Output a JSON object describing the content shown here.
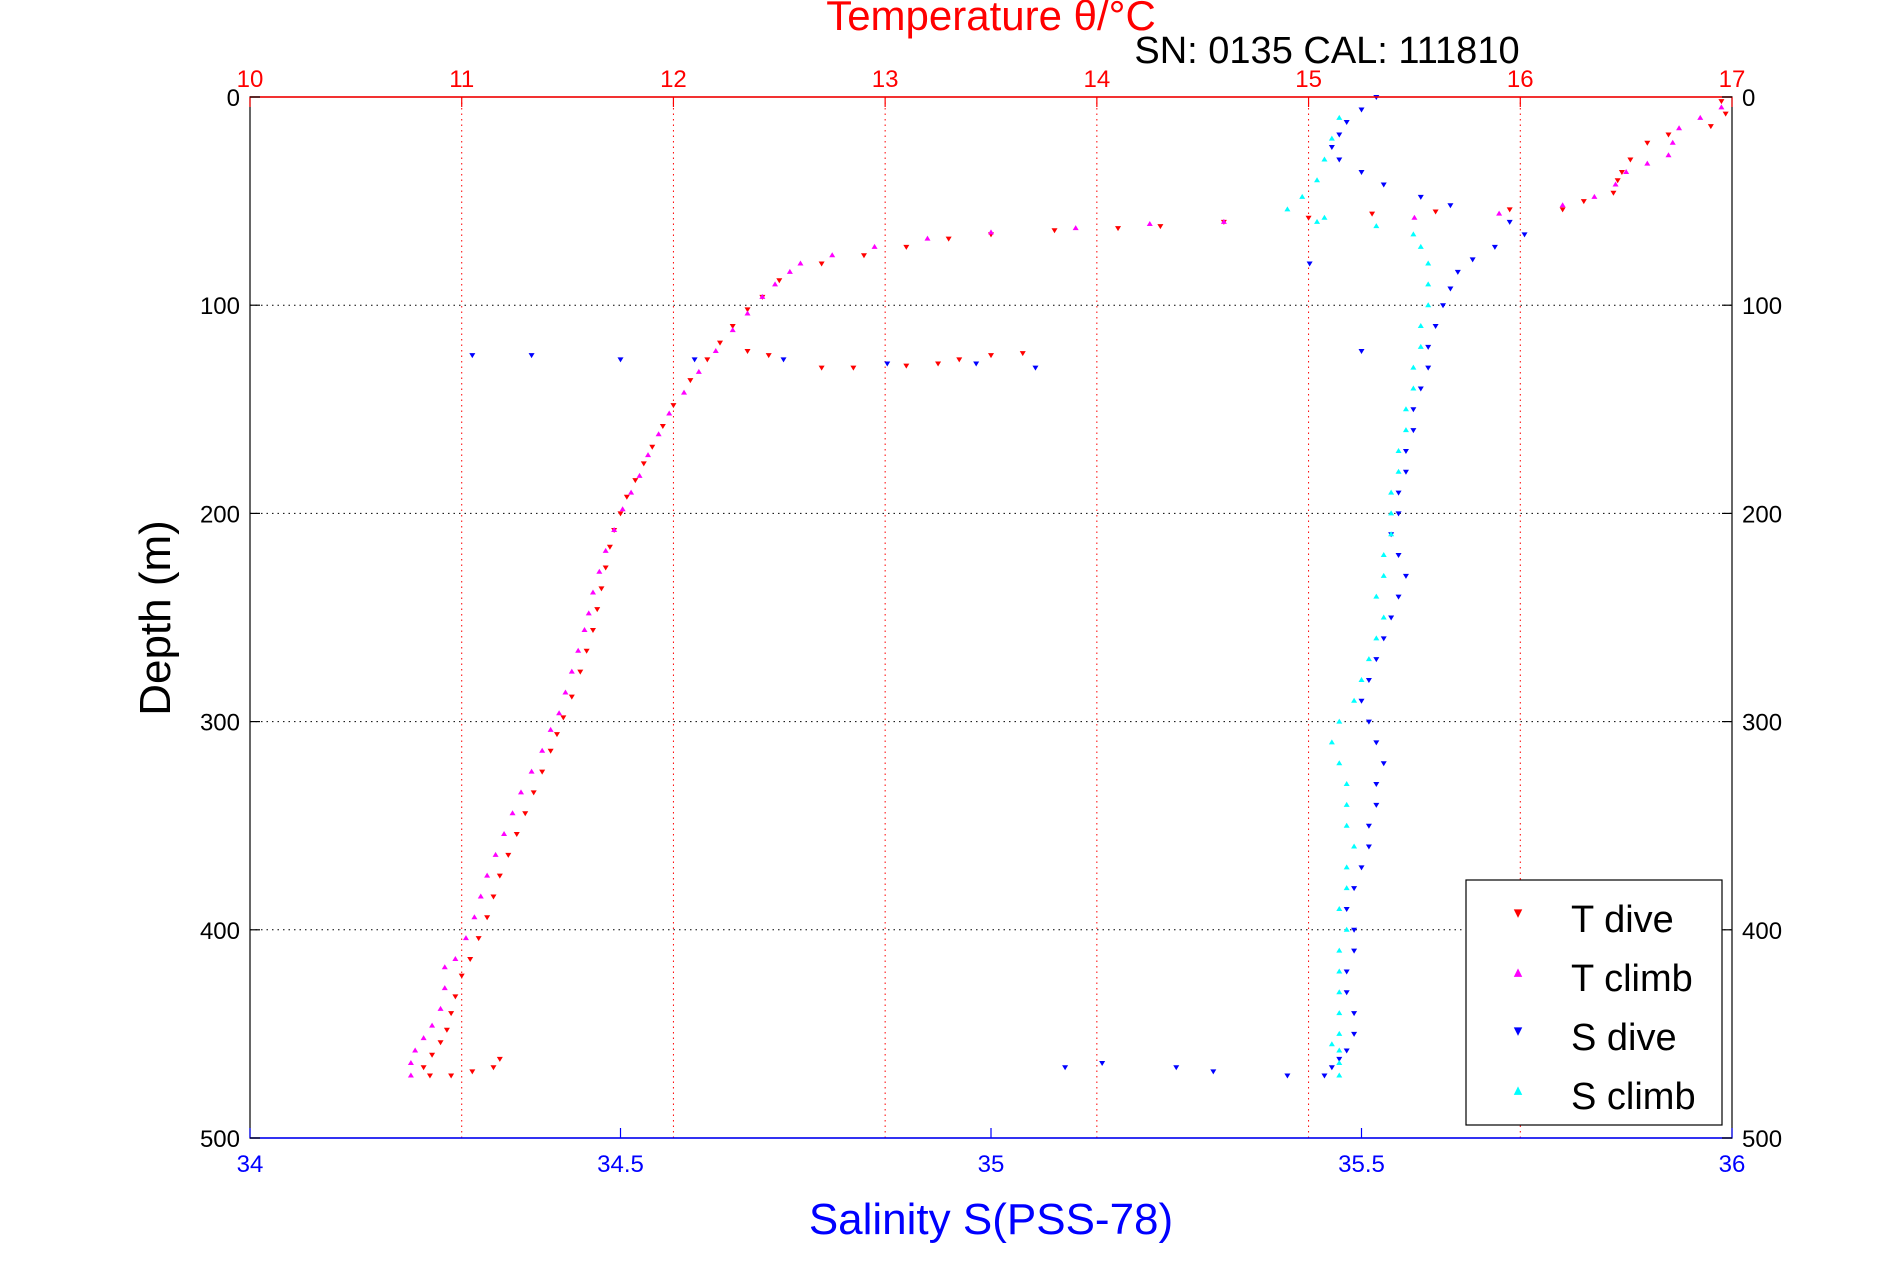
{
  "chart_data": {
    "type": "scatter",
    "title": "Temperature θ/°C",
    "annotation": "SN: 0135  CAL: 111810",
    "xlabel": "Salinity S(PSS-78)",
    "ylabel": "Depth (m)",
    "top_axis": {
      "label": "Temperature θ/°C",
      "range": [
        10,
        17
      ],
      "ticks": [
        10,
        11,
        12,
        13,
        14,
        15,
        16,
        17
      ],
      "color": "#ff0000"
    },
    "bottom_axis": {
      "label": "Salinity S(PSS-78)",
      "range": [
        34,
        36
      ],
      "ticks": [
        "34",
        "34.5",
        "35",
        "35.5",
        "36"
      ],
      "color": "#0000ff"
    },
    "y_axis": {
      "label": "Depth (m)",
      "range": [
        0,
        500
      ],
      "reversed": true,
      "ticks": [
        0,
        100,
        200,
        300,
        400,
        500
      ]
    },
    "grid": true,
    "legend": {
      "placement": "bottom-right",
      "entries": [
        "T dive",
        "T climb",
        "S dive",
        "S climb"
      ]
    },
    "series": [
      {
        "name": "T dive",
        "axis": "temperature",
        "color": "#ff0000",
        "marker": "triangle-down",
        "points": [
          [
            16.95,
            2
          ],
          [
            16.97,
            8
          ],
          [
            16.9,
            14
          ],
          [
            16.7,
            18
          ],
          [
            16.6,
            22
          ],
          [
            16.52,
            30
          ],
          [
            16.48,
            36
          ],
          [
            16.46,
            40
          ],
          [
            16.44,
            46
          ],
          [
            16.3,
            50
          ],
          [
            16.2,
            54
          ],
          [
            15.95,
            54
          ],
          [
            15.6,
            55
          ],
          [
            15.3,
            56
          ],
          [
            15.0,
            58
          ],
          [
            14.6,
            60
          ],
          [
            14.3,
            62
          ],
          [
            14.1,
            63
          ],
          [
            13.8,
            64
          ],
          [
            13.5,
            66
          ],
          [
            13.3,
            68
          ],
          [
            13.1,
            72
          ],
          [
            12.9,
            76
          ],
          [
            12.7,
            80
          ],
          [
            12.5,
            88
          ],
          [
            12.42,
            96
          ],
          [
            12.35,
            102
          ],
          [
            12.28,
            110
          ],
          [
            12.22,
            118
          ],
          [
            12.16,
            126
          ],
          [
            12.08,
            136
          ],
          [
            12.0,
            148
          ],
          [
            11.95,
            158
          ],
          [
            11.9,
            168
          ],
          [
            11.86,
            176
          ],
          [
            11.82,
            184
          ],
          [
            11.78,
            192
          ],
          [
            11.75,
            200
          ],
          [
            11.72,
            208
          ],
          [
            11.7,
            216
          ],
          [
            11.68,
            226
          ],
          [
            11.66,
            236
          ],
          [
            11.64,
            246
          ],
          [
            11.62,
            256
          ],
          [
            11.59,
            266
          ],
          [
            11.56,
            276
          ],
          [
            11.52,
            288
          ],
          [
            11.48,
            298
          ],
          [
            11.45,
            306
          ],
          [
            11.42,
            314
          ],
          [
            11.38,
            324
          ],
          [
            11.34,
            334
          ],
          [
            11.3,
            344
          ],
          [
            11.26,
            354
          ],
          [
            11.22,
            364
          ],
          [
            11.18,
            374
          ],
          [
            11.15,
            384
          ],
          [
            11.12,
            394
          ],
          [
            11.08,
            404
          ],
          [
            11.04,
            414
          ],
          [
            11.0,
            422
          ],
          [
            10.97,
            432
          ],
          [
            10.95,
            440
          ],
          [
            10.93,
            448
          ],
          [
            10.9,
            454
          ],
          [
            10.86,
            460
          ],
          [
            10.82,
            466
          ],
          [
            12.35,
            122
          ],
          [
            12.45,
            124
          ],
          [
            12.7,
            130
          ],
          [
            12.85,
            130
          ],
          [
            13.1,
            129
          ],
          [
            13.25,
            128
          ],
          [
            13.35,
            126
          ],
          [
            13.5,
            124
          ],
          [
            13.65,
            123
          ],
          [
            10.85,
            470
          ],
          [
            10.95,
            470
          ],
          [
            11.05,
            468
          ],
          [
            11.15,
            466
          ],
          [
            11.18,
            462
          ]
        ]
      },
      {
        "name": "T climb",
        "axis": "temperature",
        "color": "#ff00ff",
        "marker": "triangle-up",
        "points": [
          [
            16.95,
            5
          ],
          [
            16.85,
            10
          ],
          [
            16.75,
            15
          ],
          [
            16.72,
            22
          ],
          [
            16.7,
            28
          ],
          [
            16.6,
            32
          ],
          [
            16.5,
            36
          ],
          [
            16.45,
            42
          ],
          [
            16.35,
            48
          ],
          [
            16.2,
            52
          ],
          [
            15.9,
            56
          ],
          [
            15.5,
            58
          ],
          [
            14.6,
            60
          ],
          [
            14.25,
            61
          ],
          [
            13.9,
            63
          ],
          [
            13.5,
            65
          ],
          [
            13.2,
            68
          ],
          [
            12.95,
            72
          ],
          [
            12.75,
            76
          ],
          [
            12.6,
            80
          ],
          [
            12.55,
            84
          ],
          [
            12.48,
            90
          ],
          [
            12.42,
            96
          ],
          [
            12.35,
            104
          ],
          [
            12.28,
            112
          ],
          [
            12.2,
            122
          ],
          [
            12.12,
            132
          ],
          [
            12.05,
            142
          ],
          [
            11.98,
            152
          ],
          [
            11.93,
            162
          ],
          [
            11.88,
            172
          ],
          [
            11.84,
            182
          ],
          [
            11.8,
            190
          ],
          [
            11.76,
            198
          ],
          [
            11.72,
            208
          ],
          [
            11.68,
            218
          ],
          [
            11.65,
            228
          ],
          [
            11.62,
            238
          ],
          [
            11.6,
            248
          ],
          [
            11.58,
            256
          ],
          [
            11.55,
            266
          ],
          [
            11.52,
            276
          ],
          [
            11.49,
            286
          ],
          [
            11.46,
            296
          ],
          [
            11.42,
            304
          ],
          [
            11.38,
            314
          ],
          [
            11.33,
            324
          ],
          [
            11.28,
            334
          ],
          [
            11.24,
            344
          ],
          [
            11.2,
            354
          ],
          [
            11.16,
            364
          ],
          [
            11.12,
            374
          ],
          [
            11.09,
            384
          ],
          [
            11.06,
            394
          ],
          [
            11.02,
            404
          ],
          [
            10.97,
            414
          ],
          [
            10.92,
            418
          ],
          [
            10.92,
            428
          ],
          [
            10.9,
            438
          ],
          [
            10.86,
            446
          ],
          [
            10.82,
            452
          ],
          [
            10.78,
            458
          ],
          [
            10.76,
            464
          ],
          [
            10.76,
            470
          ]
        ]
      },
      {
        "name": "S dive",
        "axis": "salinity",
        "color": "#0000ff",
        "marker": "triangle-down",
        "points": [
          [
            35.52,
            0
          ],
          [
            35.5,
            6
          ],
          [
            35.48,
            12
          ],
          [
            35.47,
            18
          ],
          [
            35.46,
            24
          ],
          [
            35.47,
            30
          ],
          [
            35.5,
            36
          ],
          [
            35.53,
            42
          ],
          [
            35.58,
            48
          ],
          [
            35.62,
            52
          ],
          [
            35.7,
            60
          ],
          [
            35.72,
            66
          ],
          [
            35.68,
            72
          ],
          [
            35.65,
            78
          ],
          [
            35.63,
            84
          ],
          [
            35.62,
            92
          ],
          [
            35.61,
            100
          ],
          [
            35.6,
            110
          ],
          [
            35.59,
            120
          ],
          [
            35.59,
            130
          ],
          [
            35.58,
            140
          ],
          [
            35.57,
            150
          ],
          [
            35.57,
            160
          ],
          [
            35.56,
            170
          ],
          [
            35.56,
            180
          ],
          [
            35.55,
            190
          ],
          [
            35.55,
            200
          ],
          [
            35.54,
            210
          ],
          [
            35.55,
            220
          ],
          [
            35.56,
            230
          ],
          [
            35.55,
            240
          ],
          [
            35.54,
            250
          ],
          [
            35.53,
            260
          ],
          [
            35.52,
            270
          ],
          [
            35.51,
            280
          ],
          [
            35.5,
            290
          ],
          [
            35.51,
            300
          ],
          [
            35.52,
            310
          ],
          [
            35.53,
            320
          ],
          [
            35.52,
            330
          ],
          [
            35.52,
            340
          ],
          [
            35.51,
            350
          ],
          [
            35.51,
            360
          ],
          [
            35.5,
            370
          ],
          [
            35.49,
            380
          ],
          [
            35.48,
            390
          ],
          [
            35.49,
            400
          ],
          [
            35.49,
            410
          ],
          [
            35.48,
            420
          ],
          [
            35.48,
            430
          ],
          [
            35.49,
            440
          ],
          [
            35.49,
            450
          ],
          [
            35.48,
            458
          ],
          [
            35.47,
            462
          ],
          [
            35.46,
            466
          ],
          [
            35.45,
            470
          ],
          [
            35.4,
            470
          ],
          [
            35.3,
            468
          ],
          [
            35.25,
            466
          ],
          [
            35.15,
            464
          ],
          [
            35.1,
            466
          ],
          [
            34.3,
            124
          ],
          [
            34.38,
            124
          ],
          [
            34.5,
            126
          ],
          [
            34.6,
            126
          ],
          [
            34.72,
            126
          ],
          [
            34.86,
            128
          ],
          [
            34.98,
            128
          ],
          [
            35.06,
            130
          ],
          [
            35.5,
            122
          ],
          [
            35.43,
            80
          ]
        ]
      },
      {
        "name": "S climb",
        "axis": "salinity",
        "color": "#00ffff",
        "marker": "triangle-up",
        "points": [
          [
            35.47,
            10
          ],
          [
            35.46,
            20
          ],
          [
            35.45,
            30
          ],
          [
            35.44,
            40
          ],
          [
            35.42,
            48
          ],
          [
            35.4,
            54
          ],
          [
            35.45,
            58
          ],
          [
            35.52,
            62
          ],
          [
            35.57,
            66
          ],
          [
            35.58,
            72
          ],
          [
            35.59,
            80
          ],
          [
            35.59,
            90
          ],
          [
            35.59,
            100
          ],
          [
            35.58,
            110
          ],
          [
            35.58,
            120
          ],
          [
            35.57,
            130
          ],
          [
            35.57,
            140
          ],
          [
            35.56,
            150
          ],
          [
            35.56,
            160
          ],
          [
            35.55,
            170
          ],
          [
            35.55,
            180
          ],
          [
            35.54,
            190
          ],
          [
            35.54,
            200
          ],
          [
            35.54,
            210
          ],
          [
            35.53,
            220
          ],
          [
            35.53,
            230
          ],
          [
            35.52,
            240
          ],
          [
            35.53,
            250
          ],
          [
            35.52,
            260
          ],
          [
            35.51,
            270
          ],
          [
            35.5,
            280
          ],
          [
            35.49,
            290
          ],
          [
            35.47,
            300
          ],
          [
            35.46,
            310
          ],
          [
            35.47,
            320
          ],
          [
            35.48,
            330
          ],
          [
            35.48,
            340
          ],
          [
            35.48,
            350
          ],
          [
            35.49,
            360
          ],
          [
            35.48,
            370
          ],
          [
            35.48,
            380
          ],
          [
            35.47,
            390
          ],
          [
            35.48,
            400
          ],
          [
            35.47,
            410
          ],
          [
            35.47,
            420
          ],
          [
            35.47,
            430
          ],
          [
            35.47,
            440
          ],
          [
            35.47,
            450
          ],
          [
            35.47,
            458
          ],
          [
            35.47,
            464
          ],
          [
            35.47,
            470
          ],
          [
            35.46,
            455
          ],
          [
            35.44,
            60
          ]
        ]
      }
    ]
  }
}
